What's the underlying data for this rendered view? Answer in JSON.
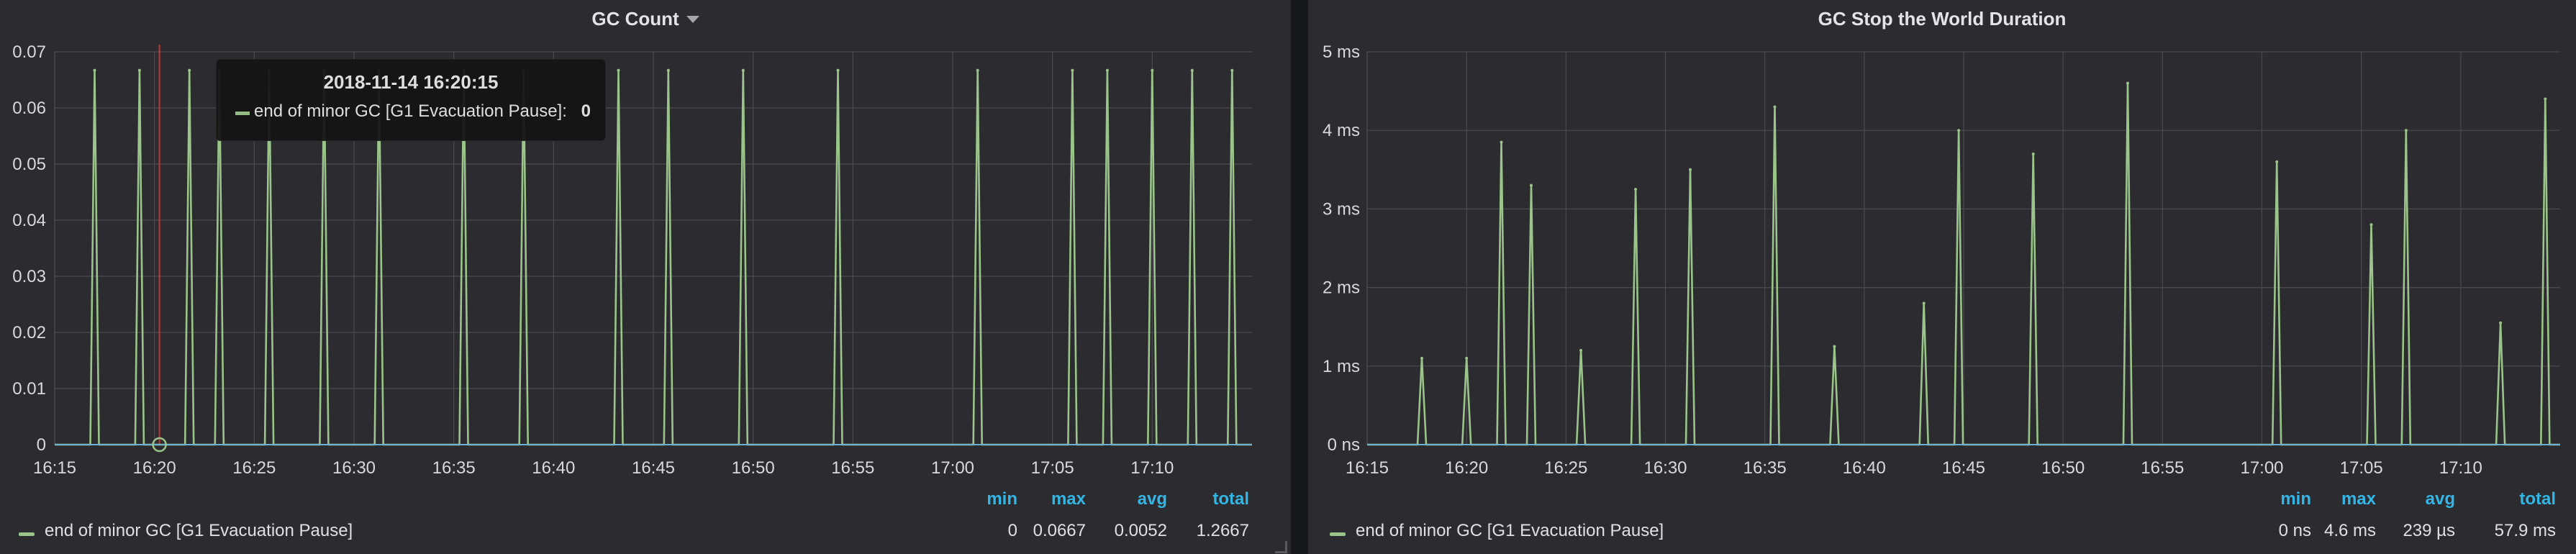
{
  "panels": {
    "left": {
      "title": "GC Count",
      "tooltip": {
        "time": "2018-11-14 16:20:15",
        "series": "end of minor GC [G1 Evacuation Pause]:",
        "value": "0"
      },
      "legend": {
        "headers": {
          "min": "min",
          "max": "max",
          "avg": "avg",
          "total": "total"
        },
        "series_name": "end of minor GC [G1 Evacuation Pause]",
        "min": "0",
        "max": "0.0667",
        "avg": "0.0052",
        "total": "1.2667"
      }
    },
    "right": {
      "title": "GC Stop the World Duration",
      "legend": {
        "headers": {
          "min": "min",
          "max": "max",
          "avg": "avg",
          "total": "total"
        },
        "series_name": "end of minor GC [G1 Evacuation Pause]",
        "min": "0 ns",
        "max": "4.6 ms",
        "avg": "239 µs",
        "total": "57.9 ms"
      }
    }
  },
  "colors": {
    "series": "#9ac48a",
    "legend_header": "#33b5e5",
    "crosshair": "#b83a2e",
    "panel_bg": "#2c2c30"
  },
  "chart_data": [
    {
      "type": "line",
      "title": "GC Count",
      "series": [
        {
          "name": "end of minor GC [G1 Evacuation Pause]",
          "x": [
            "16:17:00",
            "16:19:15",
            "16:21:45",
            "16:23:15",
            "16:25:45",
            "16:28:30",
            "16:31:15",
            "16:35:30",
            "16:38:30",
            "16:43:15",
            "16:45:45",
            "16:49:30",
            "16:54:15",
            "17:01:15",
            "17:06:00",
            "17:07:45",
            "17:10:00",
            "17:12:00",
            "17:14:00"
          ],
          "values": [
            0.0667,
            0.0667,
            0.0667,
            0.0667,
            0.0667,
            0.0667,
            0.0667,
            0.0667,
            0.0667,
            0.0667,
            0.0667,
            0.0667,
            0.0667,
            0.0667,
            0.0667,
            0.0667,
            0.0667,
            0.0667,
            0.0667
          ]
        }
      ],
      "xticks": [
        "16:15",
        "16:20",
        "16:25",
        "16:30",
        "16:35",
        "16:40",
        "16:45",
        "16:50",
        "16:55",
        "17:00",
        "17:05",
        "17:10"
      ],
      "yticks": [
        "0",
        "0.01",
        "0.02",
        "0.03",
        "0.04",
        "0.05",
        "0.06",
        "0.07"
      ],
      "ylim": [
        0,
        0.07
      ],
      "xlim": [
        "16:15:00",
        "17:15:00"
      ],
      "grid": true,
      "legend": "bottom",
      "crosshair_x": "16:20:15"
    },
    {
      "type": "line",
      "title": "GC Stop the World Duration",
      "series": [
        {
          "name": "end of minor GC [G1 Evacuation Pause]",
          "x": [
            "16:17:45",
            "16:20:00",
            "16:21:45",
            "16:23:15",
            "16:25:45",
            "16:28:30",
            "16:31:15",
            "16:35:30",
            "16:38:30",
            "16:43:00",
            "16:44:45",
            "16:48:30",
            "16:53:15",
            "17:00:45",
            "17:05:30",
            "17:07:15",
            "17:12:00",
            "17:14:15"
          ],
          "values": [
            1.1,
            1.1,
            3.85,
            3.3,
            1.2,
            3.25,
            3.5,
            4.3,
            1.25,
            1.8,
            4.0,
            3.7,
            4.6,
            3.6,
            2.8,
            4.0,
            1.55,
            4.4
          ]
        }
      ],
      "xticks": [
        "16:15",
        "16:20",
        "16:25",
        "16:30",
        "16:35",
        "16:40",
        "16:45",
        "16:50",
        "16:55",
        "17:00",
        "17:05",
        "17:10"
      ],
      "yticks": [
        "0 ns",
        "1 ms",
        "2 ms",
        "3 ms",
        "4 ms",
        "5 ms"
      ],
      "ylim": [
        0,
        5
      ],
      "xlim": [
        "16:15:00",
        "17:15:00"
      ],
      "grid": true,
      "legend": "bottom"
    }
  ]
}
